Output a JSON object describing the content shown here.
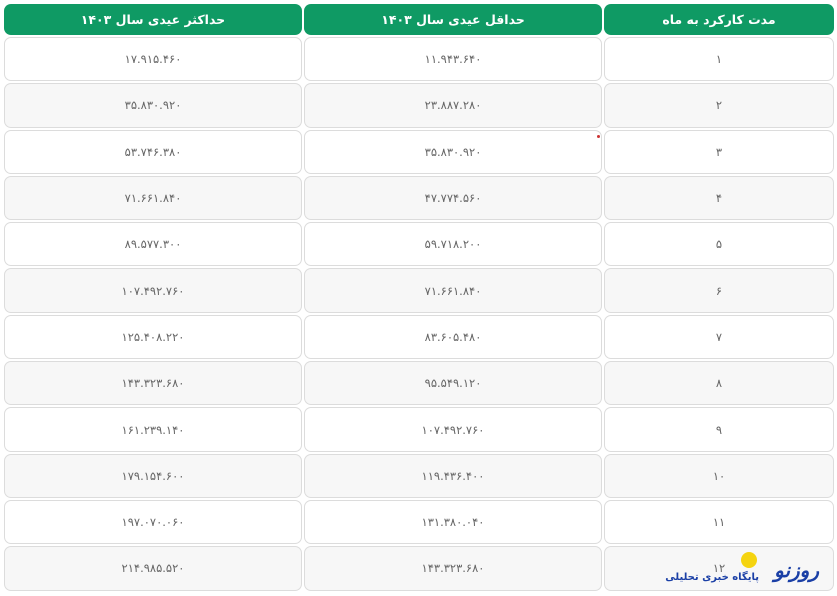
{
  "table": {
    "headers": [
      "حداکثر عیدی سال ۱۴۰۳",
      "حداقل عیدی سال ۱۴۰۳",
      "مدت کارکرد به ماه"
    ],
    "rows": [
      {
        "max": "۱۷.۹۱۵.۴۶۰",
        "min": "۱۱.۹۴۳.۶۴۰",
        "months": "۱"
      },
      {
        "max": "۳۵.۸۳۰.۹۲۰",
        "min": "۲۳.۸۸۷.۲۸۰",
        "months": "۲"
      },
      {
        "max": "۵۳.۷۴۶.۳۸۰",
        "min": "۳۵.۸۳۰.۹۲۰",
        "months": "۳"
      },
      {
        "max": "۷۱.۶۶۱.۸۴۰",
        "min": "۴۷.۷۷۴.۵۶۰",
        "months": "۴"
      },
      {
        "max": "۸۹.۵۷۷.۳۰۰",
        "min": "۵۹.۷۱۸.۲۰۰",
        "months": "۵"
      },
      {
        "max": "۱۰۷.۴۹۲.۷۶۰",
        "min": "۷۱.۶۶۱.۸۴۰",
        "months": "۶"
      },
      {
        "max": "۱۲۵.۴۰۸.۲۲۰",
        "min": "۸۳.۶۰۵.۴۸۰",
        "months": "۷"
      },
      {
        "max": "۱۴۳.۳۲۳.۶۸۰",
        "min": "۹۵.۵۴۹.۱۲۰",
        "months": "۸"
      },
      {
        "max": "۱۶۱.۲۳۹.۱۴۰",
        "min": "۱۰۷.۴۹۲.۷۶۰",
        "months": "۹"
      },
      {
        "max": "۱۷۹.۱۵۴.۶۰۰",
        "min": "۱۱۹.۴۳۶.۴۰۰",
        "months": "۱۰"
      },
      {
        "max": "۱۹۷.۰۷۰.۰۶۰",
        "min": "۱۳۱.۳۸۰.۰۴۰",
        "months": "۱۱"
      },
      {
        "max": "۲۱۴.۹۸۵.۵۲۰",
        "min": "۱۴۳.۳۲۳.۶۸۰",
        "months": "۱۲"
      }
    ]
  },
  "watermark": {
    "name": "روزنو",
    "subtitle": "پایگاه خبری تحلیلی"
  },
  "colors": {
    "header_bg": "#0f9a64",
    "header_text": "#ffffff",
    "alt_row": "#f7f7f7",
    "logo": "#1a3fa6",
    "logo_dot": "#f5d410"
  }
}
